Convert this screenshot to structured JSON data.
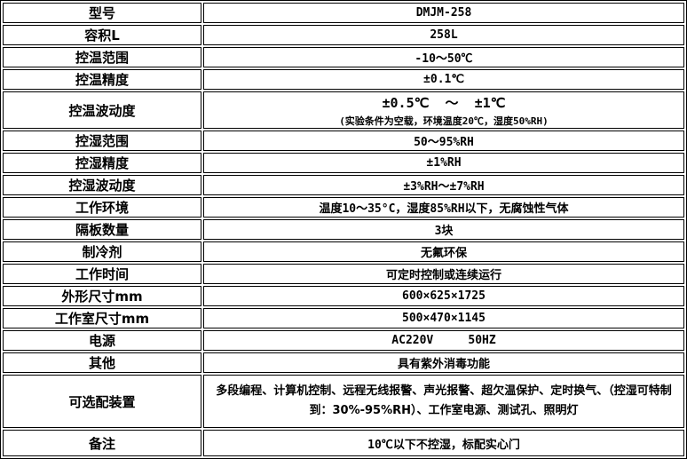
{
  "rows": [
    {
      "label": "型号",
      "value": "DMJM-258"
    },
    {
      "label": "容积L",
      "value": "258L"
    },
    {
      "label": "控温范围",
      "value": "-10～50℃"
    },
    {
      "label": "控温精度",
      "value": "±0.1℃"
    },
    {
      "label": "控温波动度",
      "value": "±0.5℃  ～  ±1℃",
      "note": "(实验条件为空载，环境温度20℃，湿度50%RH)"
    },
    {
      "label": "控湿范围",
      "value": "50～95%RH"
    },
    {
      "label": "控湿精度",
      "value": "±1%RH"
    },
    {
      "label": "控湿波动度",
      "value": "±3%RH～±7%RH"
    },
    {
      "label": "工作环境",
      "value": "温度10～35°C，湿度85%RH以下，无腐蚀性气体"
    },
    {
      "label": "隔板数量",
      "value": "3块"
    },
    {
      "label": "制冷剂",
      "value": "无氟环保"
    },
    {
      "label": "工作时间",
      "value": "可定时控制或连续运行"
    },
    {
      "label": "外形尺寸mm",
      "value": "600×625×1725"
    },
    {
      "label": "工作室尺寸mm",
      "value": "500×470×1145"
    },
    {
      "label": "电源",
      "value": "AC220V     50HZ"
    },
    {
      "label": "其他",
      "value": "具有紫外消毒功能"
    },
    {
      "label": "可选配装置",
      "value": "多段编程、计算机控制、远程无线报警、声光报警、超欠温保护、定时换气、（控湿可特制到：30%-95%RH）、工作室电源、测试孔、照明灯"
    },
    {
      "label": "备注",
      "value": "10℃以下不控湿，标配实心门"
    }
  ]
}
